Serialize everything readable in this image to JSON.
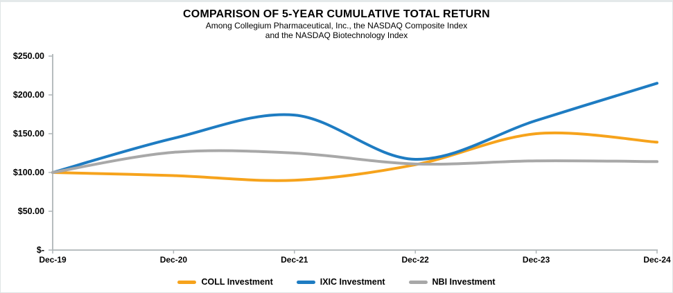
{
  "header": {
    "title": "COMPARISON OF 5-YEAR CUMULATIVE TOTAL RETURN",
    "subtitle_line1": "Among Collegium Pharmaceutical, Inc., the NASDAQ Composite Index",
    "subtitle_line2": "and the NASDAQ Biotechnology Index"
  },
  "chart_data": {
    "type": "line",
    "smooth": true,
    "grid": false,
    "legend_position": "bottom",
    "axis_color": "#aeb4b7",
    "categories": [
      "Dec-19",
      "Dec-20",
      "Dec-21",
      "Dec-22",
      "Dec-23",
      "Dec-24"
    ],
    "series": [
      {
        "name": "COLL Investment",
        "color": "#F6A31C",
        "values": [
          100,
          96,
          90,
          110,
          150,
          139
        ]
      },
      {
        "name": "IXIC Investment",
        "color": "#1E7CC2",
        "values": [
          100,
          144,
          174,
          117,
          167,
          215
        ]
      },
      {
        "name": "NBI Investment",
        "color": "#A8A8A8",
        "values": [
          100,
          126,
          125,
          111,
          115,
          114
        ]
      }
    ],
    "y_axis": {
      "min": 0,
      "max": 250,
      "tick_step": 50,
      "tick_labels": [
        "$-",
        "$50.00",
        "$100.00",
        "$150.00",
        "$200.00",
        "$250.00"
      ]
    }
  }
}
